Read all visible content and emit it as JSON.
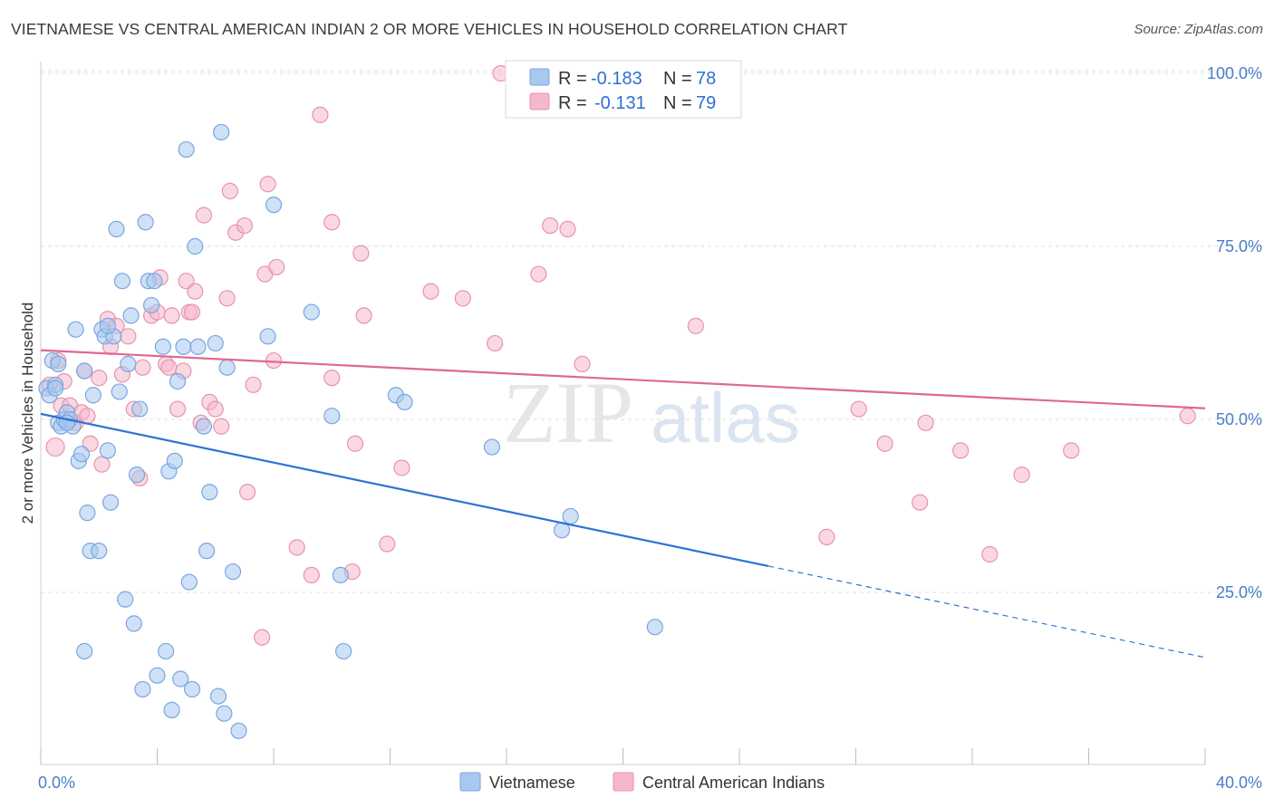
{
  "title": "VIETNAMESE VS CENTRAL AMERICAN INDIAN 2 OR MORE VEHICLES IN HOUSEHOLD CORRELATION CHART",
  "source": "Source: ZipAtlas.com",
  "watermark": {
    "zip": "ZIP",
    "atlas": "atlas"
  },
  "colors": {
    "blue_fill": "#a8c8f0",
    "blue_stroke": "#7aa6de",
    "blue_line": "#2f72d6",
    "pink_fill": "#f5b8cb",
    "pink_stroke": "#e893ad",
    "pink_line": "#e0688f",
    "grid": "#dcdcdc",
    "tick_label": "#4a7dc9"
  },
  "legend_top": {
    "rows": [
      {
        "r_label": "R =",
        "r_value": "-0.183",
        "n_label": "N =",
        "n_value": "78",
        "color": "blue"
      },
      {
        "r_label": "R =",
        "r_value": "-0.131",
        "n_label": "N =",
        "n_value": "79",
        "color": "pink"
      }
    ]
  },
  "legend_bottom": {
    "items": [
      "Vietnamese",
      "Central American Indians"
    ]
  },
  "chart_data": {
    "type": "scatter",
    "xlabel": "",
    "ylabel": "2 or more Vehicles in Household",
    "xlim": [
      0,
      40
    ],
    "ylim": [
      0,
      103
    ],
    "x_tick_labels": {
      "left": "0.0%",
      "right": "40.0%"
    },
    "y_ticks": [
      {
        "value": 25,
        "label": "25.0%"
      },
      {
        "value": 50,
        "label": "50.0%"
      },
      {
        "value": 75,
        "label": "75.0%"
      },
      {
        "value": 100,
        "label": "100.0%"
      }
    ],
    "grid": true,
    "series": [
      {
        "name": "Vietnamese",
        "color": "blue",
        "trend": {
          "x0": 0,
          "y0": 50.8,
          "x1": 25,
          "y1": 28.8,
          "dash_to_x": 40,
          "dash_to_y": 15.6
        },
        "points": [
          [
            0.2,
            54.5
          ],
          [
            0.3,
            53.5
          ],
          [
            0.4,
            58.5
          ],
          [
            0.5,
            55.0
          ],
          [
            0.6,
            49.5
          ],
          [
            0.7,
            49.0
          ],
          [
            0.8,
            50.0
          ],
          [
            0.9,
            51.0
          ],
          [
            1.0,
            50.0
          ],
          [
            1.1,
            49.0
          ],
          [
            1.2,
            63.0
          ],
          [
            1.3,
            44.0
          ],
          [
            1.4,
            45.0
          ],
          [
            1.5,
            57.0
          ],
          [
            1.6,
            36.5
          ],
          [
            1.7,
            31.0
          ],
          [
            1.8,
            53.5
          ],
          [
            2.0,
            31.0
          ],
          [
            2.1,
            63.0
          ],
          [
            2.2,
            62.0
          ],
          [
            2.3,
            45.5
          ],
          [
            2.4,
            38.0
          ],
          [
            2.5,
            62.0
          ],
          [
            2.6,
            77.5
          ],
          [
            2.7,
            54.0
          ],
          [
            2.8,
            70.0
          ],
          [
            2.9,
            24.0
          ],
          [
            3.0,
            58.0
          ],
          [
            3.1,
            65.0
          ],
          [
            3.2,
            20.5
          ],
          [
            3.3,
            42.0
          ],
          [
            3.4,
            51.5
          ],
          [
            3.5,
            11.0
          ],
          [
            3.6,
            78.5
          ],
          [
            3.7,
            70.0
          ],
          [
            3.8,
            66.5
          ],
          [
            3.9,
            70.0
          ],
          [
            4.0,
            13.0
          ],
          [
            4.2,
            60.5
          ],
          [
            4.3,
            16.5
          ],
          [
            4.4,
            42.5
          ],
          [
            4.5,
            8.0
          ],
          [
            4.6,
            44.0
          ],
          [
            4.7,
            55.5
          ],
          [
            4.8,
            12.5
          ],
          [
            4.9,
            60.5
          ],
          [
            5.0,
            89.0
          ],
          [
            5.1,
            26.5
          ],
          [
            5.2,
            11.0
          ],
          [
            5.3,
            75.0
          ],
          [
            5.4,
            60.5
          ],
          [
            5.6,
            49.0
          ],
          [
            5.7,
            31.0
          ],
          [
            5.8,
            39.5
          ],
          [
            6.0,
            61.0
          ],
          [
            6.1,
            10.0
          ],
          [
            6.2,
            91.5
          ],
          [
            6.3,
            7.5
          ],
          [
            6.4,
            57.5
          ],
          [
            6.6,
            28.0
          ],
          [
            6.8,
            5.0
          ],
          [
            7.8,
            62.0
          ],
          [
            8.0,
            81.0
          ],
          [
            9.3,
            65.5
          ],
          [
            10.0,
            50.5
          ],
          [
            10.3,
            27.5
          ],
          [
            10.4,
            16.5
          ],
          [
            12.2,
            53.5
          ],
          [
            12.5,
            52.5
          ],
          [
            15.5,
            46.0
          ],
          [
            17.9,
            34.0
          ],
          [
            18.2,
            36.0
          ],
          [
            21.1,
            20.0
          ],
          [
            1.5,
            16.5
          ],
          [
            0.5,
            54.5
          ],
          [
            0.9,
            49.5
          ],
          [
            2.3,
            63.5
          ],
          [
            0.6,
            58.0
          ]
        ]
      },
      {
        "name": "Central American Indians",
        "color": "pink",
        "trend": {
          "x0": 0,
          "y0": 60.0,
          "x1": 40,
          "y1": 51.6
        },
        "points": [
          [
            0.3,
            55.0
          ],
          [
            0.5,
            46.0
          ],
          [
            0.6,
            58.5
          ],
          [
            0.7,
            52.0
          ],
          [
            0.8,
            55.5
          ],
          [
            1.0,
            52.0
          ],
          [
            1.2,
            49.5
          ],
          [
            1.4,
            51.0
          ],
          [
            1.5,
            57.0
          ],
          [
            1.6,
            50.5
          ],
          [
            1.7,
            46.5
          ],
          [
            2.0,
            56.0
          ],
          [
            2.1,
            43.5
          ],
          [
            2.3,
            64.5
          ],
          [
            2.4,
            60.5
          ],
          [
            2.6,
            63.5
          ],
          [
            2.8,
            56.5
          ],
          [
            3.0,
            62.0
          ],
          [
            3.2,
            51.5
          ],
          [
            3.4,
            41.5
          ],
          [
            3.5,
            57.5
          ],
          [
            3.8,
            65.0
          ],
          [
            4.0,
            65.5
          ],
          [
            4.1,
            70.5
          ],
          [
            4.3,
            58.0
          ],
          [
            4.4,
            57.5
          ],
          [
            4.5,
            65.0
          ],
          [
            4.7,
            51.5
          ],
          [
            4.9,
            57.0
          ],
          [
            5.0,
            70.0
          ],
          [
            5.1,
            65.5
          ],
          [
            5.2,
            65.5
          ],
          [
            5.3,
            68.5
          ],
          [
            5.5,
            49.5
          ],
          [
            5.6,
            79.5
          ],
          [
            5.8,
            52.5
          ],
          [
            6.0,
            51.5
          ],
          [
            6.2,
            49.0
          ],
          [
            6.4,
            67.5
          ],
          [
            6.5,
            83.0
          ],
          [
            6.7,
            77.0
          ],
          [
            7.0,
            78.0
          ],
          [
            7.1,
            39.5
          ],
          [
            7.3,
            55.0
          ],
          [
            7.6,
            18.5
          ],
          [
            7.7,
            71.0
          ],
          [
            7.8,
            84.0
          ],
          [
            8.0,
            58.5
          ],
          [
            8.1,
            72.0
          ],
          [
            8.8,
            31.5
          ],
          [
            9.3,
            27.5
          ],
          [
            9.6,
            94.0
          ],
          [
            10.0,
            78.5
          ],
          [
            10.0,
            56.0
          ],
          [
            10.7,
            28.0
          ],
          [
            10.8,
            46.5
          ],
          [
            11.0,
            74.0
          ],
          [
            11.1,
            65.0
          ],
          [
            11.9,
            32.0
          ],
          [
            12.4,
            43.0
          ],
          [
            13.4,
            68.5
          ],
          [
            14.5,
            67.5
          ],
          [
            15.6,
            61.0
          ],
          [
            15.8,
            100.0
          ],
          [
            17.1,
            71.0
          ],
          [
            17.5,
            78.0
          ],
          [
            18.1,
            77.5
          ],
          [
            18.6,
            58.0
          ],
          [
            22.5,
            63.5
          ],
          [
            27.0,
            33.0
          ],
          [
            28.1,
            51.5
          ],
          [
            29.0,
            46.5
          ],
          [
            30.2,
            38.0
          ],
          [
            30.4,
            49.5
          ],
          [
            31.6,
            45.5
          ],
          [
            32.6,
            30.5
          ],
          [
            33.7,
            42.0
          ],
          [
            35.4,
            45.5
          ],
          [
            39.4,
            50.5
          ]
        ]
      }
    ]
  }
}
